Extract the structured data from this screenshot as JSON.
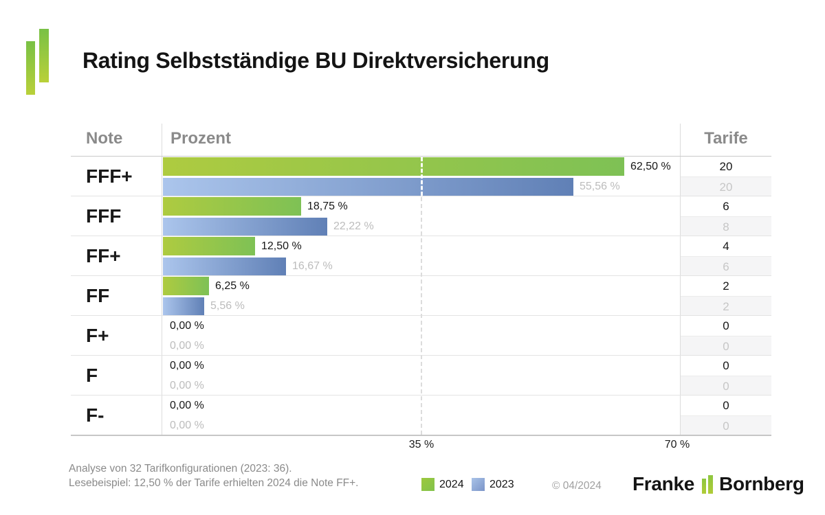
{
  "title": "Rating Selbstständige BU Direktversicherung",
  "table": {
    "note_header": "Note",
    "prozent_header": "Prozent",
    "tarife_header": "Tarife"
  },
  "chart_data": {
    "type": "bar",
    "orientation": "horizontal",
    "title": "Rating Selbstständige BU Direktversicherung",
    "categories": [
      "FFF+",
      "FFF",
      "FF+",
      "FF",
      "F+",
      "F",
      "F-"
    ],
    "series": [
      {
        "name": "2024",
        "color_start": "#aecb40",
        "color_end": "#7ec155",
        "values": [
          62.5,
          18.75,
          12.5,
          6.25,
          0.0,
          0.0,
          0.0
        ],
        "labels": [
          "62,50 %",
          "18,75 %",
          "12,50 %",
          "6,25 %",
          "0,00 %",
          "0,00 %",
          "0,00 %"
        ],
        "tarife": [
          "20",
          "6",
          "4",
          "2",
          "0",
          "0",
          "0"
        ]
      },
      {
        "name": "2023",
        "color_start": "#abc5ec",
        "color_end": "#6080b6",
        "values": [
          55.56,
          22.22,
          16.67,
          5.56,
          0.0,
          0.0,
          0.0
        ],
        "labels": [
          "55,56 %",
          "22,22 %",
          "16,67 %",
          "5,56 %",
          "0,00 %",
          "0,00 %",
          "0,00 %"
        ],
        "tarife": [
          "20",
          "8",
          "6",
          "2",
          "0",
          "0",
          "0"
        ]
      }
    ],
    "xlim": [
      0,
      70
    ],
    "xticks": [
      "35 %",
      "70 %"
    ],
    "gridline_at": 35,
    "legend_position": "bottom",
    "grid": "dashed vertical at 35%"
  },
  "footer": {
    "note_line1": "Analyse von 32 Tarifkonfigurationen (2023: 36).",
    "note_line2": "Lesebeispiel: 12,50 % der Tarife erhielten 2024 die Note FF+.",
    "legend": [
      {
        "label": "2024",
        "color": "#8dc63f"
      },
      {
        "label": "2023",
        "color": "#8aa3d2"
      }
    ],
    "copyright": "© 04/2024",
    "brand": {
      "part1": "Franke",
      "part2": "Bornberg",
      "logo_green": "#8dc63f"
    }
  }
}
